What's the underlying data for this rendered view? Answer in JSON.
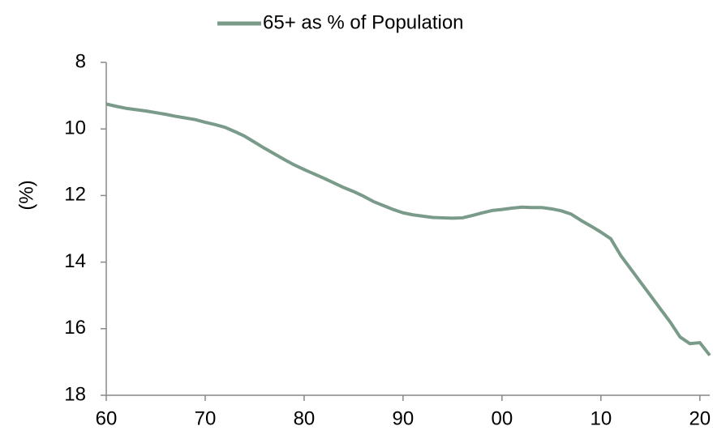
{
  "chart_data": {
    "type": "line",
    "x": [
      1960,
      1961,
      1962,
      1963,
      1964,
      1965,
      1966,
      1967,
      1968,
      1969,
      1970,
      1971,
      1972,
      1973,
      1974,
      1975,
      1976,
      1977,
      1978,
      1979,
      1980,
      1981,
      1982,
      1983,
      1984,
      1985,
      1986,
      1987,
      1988,
      1989,
      1990,
      1991,
      1992,
      1993,
      1994,
      1995,
      1996,
      1997,
      1998,
      1999,
      2000,
      2001,
      2002,
      2003,
      2004,
      2005,
      2006,
      2007,
      2008,
      2009,
      2010,
      2011,
      2012,
      2013,
      2014,
      2015,
      2016,
      2017,
      2018,
      2019,
      2020,
      2021
    ],
    "series": [
      {
        "name": "65+ as % of Population",
        "color": "#7a9a8a",
        "values": [
          9.25,
          9.32,
          9.38,
          9.42,
          9.46,
          9.51,
          9.56,
          9.62,
          9.67,
          9.72,
          9.8,
          9.87,
          9.95,
          10.08,
          10.22,
          10.4,
          10.58,
          10.75,
          10.92,
          11.08,
          11.22,
          11.35,
          11.48,
          11.62,
          11.76,
          11.88,
          12.02,
          12.18,
          12.3,
          12.42,
          12.52,
          12.58,
          12.62,
          12.66,
          12.67,
          12.68,
          12.67,
          12.6,
          12.52,
          12.45,
          12.42,
          12.38,
          12.35,
          12.36,
          12.36,
          12.4,
          12.46,
          12.56,
          12.75,
          12.92,
          13.1,
          13.3,
          13.8,
          14.2,
          14.6,
          15.0,
          15.4,
          15.8,
          16.25,
          16.45,
          16.42,
          16.8
        ]
      }
    ],
    "y_label": "(%)",
    "xlim": [
      1960,
      2021
    ],
    "xticks": [
      {
        "value": 1960,
        "label": "60"
      },
      {
        "value": 1970,
        "label": "70"
      },
      {
        "value": 1980,
        "label": "80"
      },
      {
        "value": 1990,
        "label": "90"
      },
      {
        "value": 2000,
        "label": "00"
      },
      {
        "value": 2010,
        "label": "10"
      },
      {
        "value": 2020,
        "label": "20"
      }
    ],
    "ylim": [
      18,
      8
    ],
    "yticks": [
      8,
      10,
      12,
      14,
      16,
      18
    ],
    "grid": false,
    "legend": "top"
  }
}
